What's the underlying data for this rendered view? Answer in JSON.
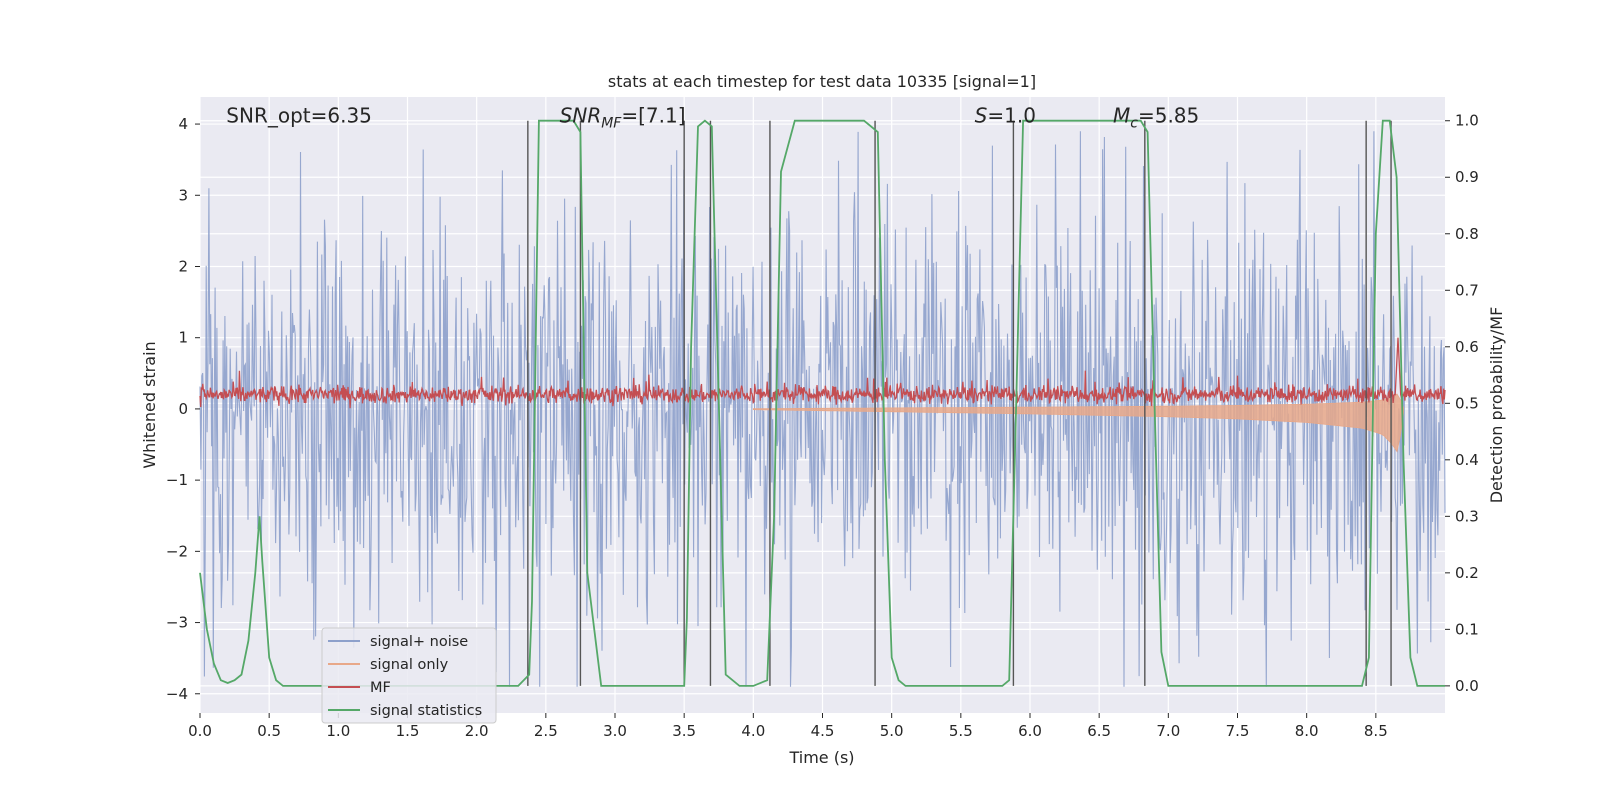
{
  "chart_data": {
    "type": "line",
    "title": "stats at each timestep for test data 10335 [signal=1]",
    "xlabel": "Time (s)",
    "ylabel": "Whitened strain",
    "ylabel_right": "Detection probability/MF",
    "xlim": [
      0.0,
      9.0
    ],
    "ylim": [
      -4.27,
      4.38
    ],
    "ylim_right": [
      -0.048,
      1.042
    ],
    "x_ticks": [
      0.0,
      0.5,
      1.0,
      1.5,
      2.0,
      2.5,
      3.0,
      3.5,
      4.0,
      4.5,
      5.0,
      5.5,
      6.0,
      6.5,
      7.0,
      7.5,
      8.0,
      8.5
    ],
    "x_tick_labels": [
      "0.0",
      "0.5",
      "1.0",
      "1.5",
      "2.0",
      "2.5",
      "3.0",
      "3.5",
      "4.0",
      "4.5",
      "5.0",
      "5.5",
      "6.0",
      "6.5",
      "7.0",
      "7.5",
      "8.0",
      "8.5"
    ],
    "y_ticks": [
      4,
      3,
      2,
      1,
      0,
      -1,
      -2,
      -3,
      -4
    ],
    "y_tick_labels": [
      "4",
      "3",
      "2",
      "1",
      "0",
      "−1",
      "−2",
      "−3",
      "−4"
    ],
    "y2_ticks": [
      1.0,
      0.9,
      0.8,
      0.7,
      0.6,
      0.5,
      0.4,
      0.3,
      0.2,
      0.1,
      0.0
    ],
    "y2_tick_labels": [
      "1.0",
      "0.9",
      "0.8",
      "0.7",
      "0.6",
      "0.5",
      "0.4",
      "0.3",
      "0.2",
      "0.1",
      "0.0"
    ],
    "annotations": [
      {
        "text": "SNR_opt=6.35",
        "x": 0.19,
        "y": 4.12
      },
      {
        "text": "SNR",
        "sub": "MF",
        "suffix": "=[7.1]",
        "x": 2.6,
        "y": 4.12
      },
      {
        "text": "S",
        "suffix": "=1.0",
        "x": 5.6,
        "y": 4.12
      },
      {
        "text": "M",
        "sub": "c",
        "suffix": "=5.85",
        "x": 6.6,
        "y": 4.12
      }
    ],
    "legend_position": "lower-left",
    "series": [
      {
        "name": "signal+ noise",
        "color": "#8da0cb",
        "axis": "left",
        "description": "whitened noisy strain, roughly between -3.9 and 3.9"
      },
      {
        "name": "signal only",
        "color": "#e8a889",
        "axis": "left",
        "envelope": {
          "t": [
            4.0,
            5.0,
            6.0,
            6.5,
            7.0,
            7.5,
            8.0,
            8.4,
            8.55,
            8.62,
            8.66,
            8.7
          ],
          "half_width": [
            0.01,
            0.04,
            0.07,
            0.09,
            0.11,
            0.14,
            0.19,
            0.27,
            0.36,
            0.5,
            0.62,
            0.05
          ]
        }
      },
      {
        "name": "MF",
        "color": "#c44e52",
        "axis": "left",
        "baseline": 0.2,
        "spike": {
          "t": 8.66,
          "value": 1.0
        }
      },
      {
        "name": "signal statistics",
        "color": "#55a868",
        "axis": "right",
        "x": [
          0.0,
          0.05,
          0.1,
          0.15,
          0.2,
          0.25,
          0.3,
          0.35,
          0.4,
          0.43,
          0.45,
          0.5,
          0.55,
          0.6,
          0.8,
          1.0,
          1.5,
          2.0,
          2.3,
          2.38,
          2.4,
          2.45,
          2.6,
          2.7,
          2.75,
          2.8,
          2.9,
          3.0,
          3.5,
          3.52,
          3.55,
          3.6,
          3.65,
          3.7,
          3.75,
          3.8,
          3.9,
          4.0,
          4.1,
          4.15,
          4.2,
          4.3,
          4.4,
          4.8,
          4.9,
          4.95,
          5.0,
          5.05,
          5.1,
          5.2,
          5.5,
          5.8,
          5.85,
          5.9,
          5.95,
          6.0,
          6.8,
          6.85,
          6.9,
          6.95,
          7.0,
          7.5,
          8.0,
          8.4,
          8.45,
          8.5,
          8.55,
          8.6,
          8.65,
          8.7,
          8.75,
          8.8,
          9.0
        ],
        "y": [
          0.2,
          0.1,
          0.04,
          0.01,
          0.005,
          0.01,
          0.02,
          0.08,
          0.2,
          0.3,
          0.22,
          0.05,
          0.01,
          0.0,
          0.0,
          0.0,
          0.0,
          0.0,
          0.0,
          0.02,
          0.15,
          1.0,
          1.0,
          1.0,
          0.98,
          0.2,
          0.0,
          0.0,
          0.0,
          0.12,
          0.6,
          0.99,
          1.0,
          0.99,
          0.5,
          0.02,
          0.0,
          0.0,
          0.01,
          0.3,
          0.91,
          1.0,
          1.0,
          1.0,
          0.98,
          0.4,
          0.05,
          0.01,
          0.0,
          0.0,
          0.0,
          0.0,
          0.01,
          0.5,
          1.0,
          1.0,
          1.0,
          0.98,
          0.5,
          0.06,
          0.0,
          0.0,
          0.0,
          0.0,
          0.05,
          0.8,
          1.0,
          1.0,
          0.9,
          0.4,
          0.05,
          0.0,
          0.0
        ]
      },
      {
        "name": "threshold crossings",
        "color": "#555555",
        "axis": "right",
        "legend": false,
        "x": [
          2.37,
          2.75,
          3.5,
          3.69,
          4.12,
          4.88,
          5.88,
          6.83,
          8.43,
          8.61
        ]
      }
    ]
  }
}
